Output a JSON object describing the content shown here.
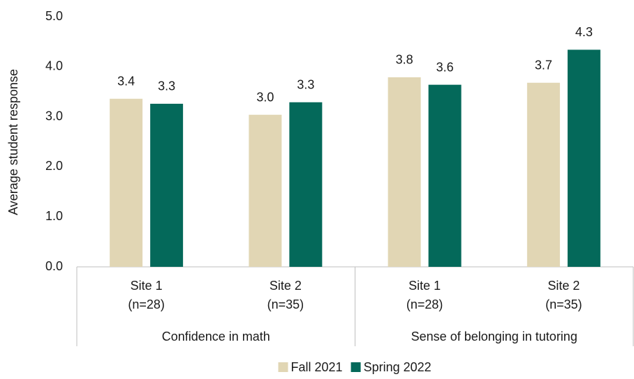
{
  "chart_data": {
    "type": "bar",
    "y_label": "Average student response",
    "categories": [
      [
        "Site 1",
        "(n=28)"
      ],
      [
        "Site 2",
        "(n=35)"
      ],
      [
        "Site 1",
        "(n=28)"
      ],
      [
        "Site 2",
        "(n=35)"
      ]
    ],
    "groups": [
      "Confidence in math",
      "Sense of belonging in tutoring"
    ],
    "series": [
      {
        "name": "Fall 2021",
        "color": "#e1d6b4",
        "values": [
          3.36,
          3.04,
          3.79,
          3.68
        ],
        "value_labels": [
          "3.4",
          "3.0",
          "3.8",
          "3.7"
        ]
      },
      {
        "name": "Spring 2022",
        "color": "#04695a",
        "values": [
          3.26,
          3.29,
          3.64,
          4.34
        ],
        "value_labels": [
          "3.3",
          "3.3",
          "3.6",
          "4.3"
        ]
      }
    ],
    "ylim": [
      0,
      5
    ],
    "yticks": [
      {
        "value": 0,
        "label": "0.0"
      },
      {
        "value": 1,
        "label": "1.0"
      },
      {
        "value": 2,
        "label": "2.0"
      },
      {
        "value": 3,
        "label": "3.0"
      },
      {
        "value": 4,
        "label": "4.0"
      },
      {
        "value": 5,
        "label": "5.0"
      }
    ],
    "grid": false,
    "legend": "bottom"
  }
}
